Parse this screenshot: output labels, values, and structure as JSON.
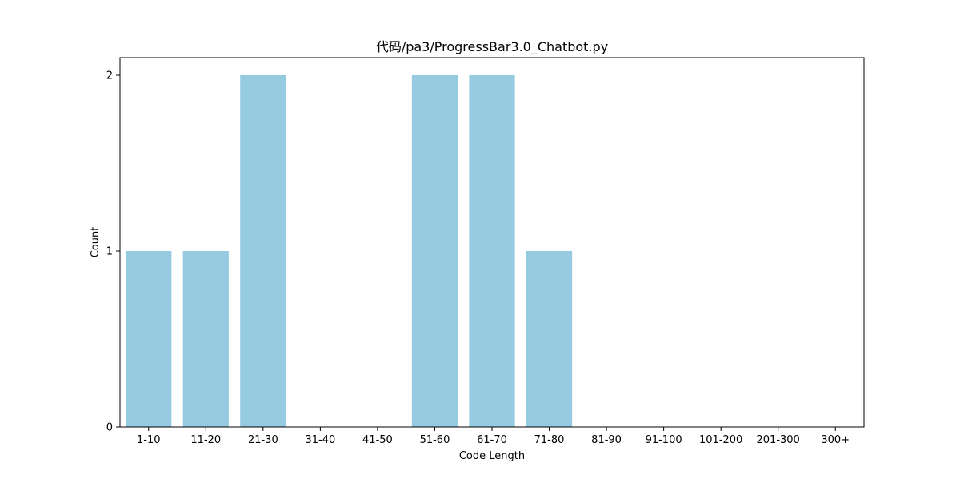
{
  "chart_data": {
    "type": "bar",
    "title": "代码/pa3/ProgressBar3.0_Chatbot.py",
    "xlabel": "Code Length",
    "ylabel": "Count",
    "categories": [
      "1-10",
      "11-20",
      "21-30",
      "31-40",
      "41-50",
      "51-60",
      "61-70",
      "71-80",
      "81-90",
      "91-100",
      "101-200",
      "201-300",
      "300+"
    ],
    "values": [
      1,
      1,
      2,
      0,
      0,
      2,
      2,
      1,
      0,
      0,
      0,
      0,
      0
    ],
    "ylim": [
      0,
      2.1
    ],
    "yticks": [
      "0",
      "1",
      "2"
    ],
    "grid": false,
    "bar_color": "#96CAE0"
  }
}
